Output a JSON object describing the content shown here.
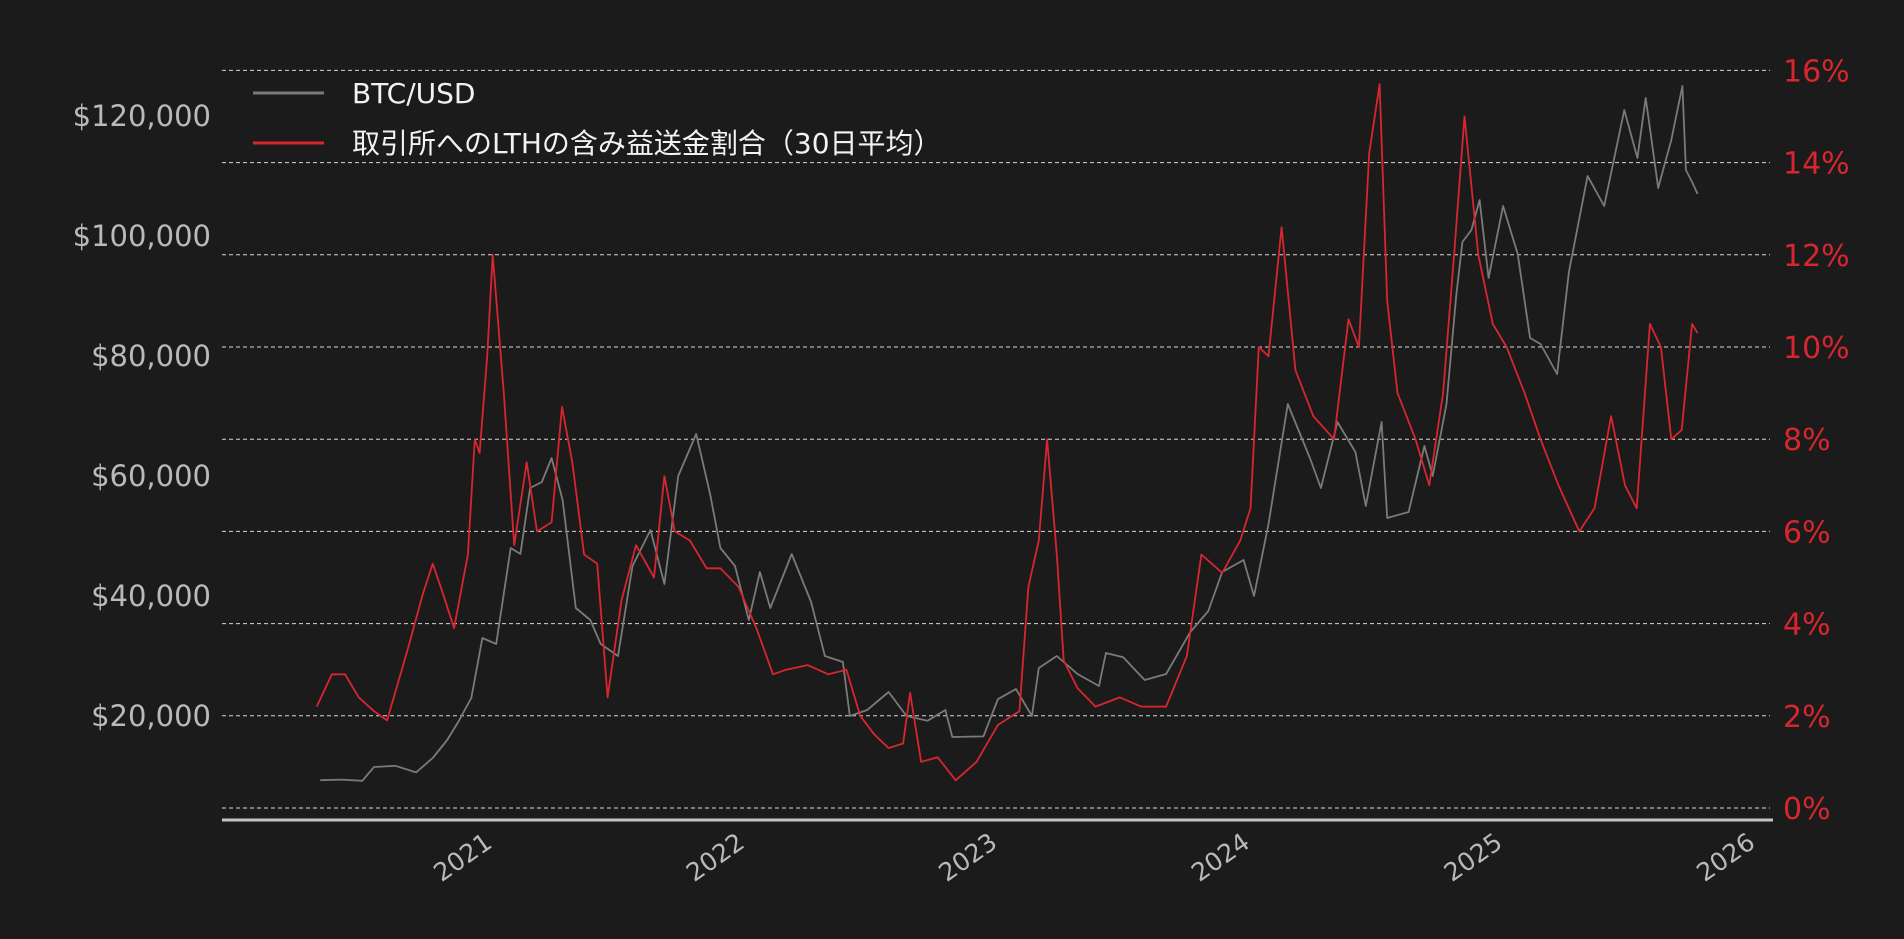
{
  "chart_data": {
    "type": "line",
    "title": "",
    "legend_placement": "top-left",
    "grid": true,
    "colors": {
      "background": "#1b1b1b",
      "btc": "#7a7a7a",
      "ratio": "#d7262f",
      "left_axis_text": "#b9b9b9",
      "right_axis_text": "#d7262f"
    },
    "x_ticks": [
      "2021",
      "2022",
      "2023",
      "2024",
      "2025",
      "2026"
    ],
    "xlim": [
      "2020-01-01",
      "2026-01-01"
    ],
    "left_axis": {
      "ticks": [
        "$20,000",
        "$40,000",
        "$60,000",
        "$80,000",
        "$100,000",
        "$120,000"
      ],
      "tick_values": [
        20000,
        40000,
        60000,
        80000,
        100000,
        120000
      ],
      "ylim": [
        0,
        128000
      ]
    },
    "right_axis": {
      "ticks": [
        "0%",
        "2%",
        "4%",
        "6%",
        "8%",
        "10%",
        "12%",
        "14%",
        "16%"
      ],
      "tick_values": [
        0,
        2,
        4,
        6,
        8,
        10,
        12,
        14,
        16
      ],
      "ylim": [
        -0.3,
        16
      ]
    },
    "series": [
      {
        "name": "BTC/USD",
        "axis": "left",
        "points": [
          [
            "2020-05-15",
            9300
          ],
          [
            "2020-06-15",
            9400
          ],
          [
            "2020-07-15",
            9200
          ],
          [
            "2020-08-01",
            11500
          ],
          [
            "2020-09-01",
            11700
          ],
          [
            "2020-10-01",
            10600
          ],
          [
            "2020-10-25",
            13000
          ],
          [
            "2020-11-15",
            16000
          ],
          [
            "2020-12-01",
            19000
          ],
          [
            "2020-12-20",
            23000
          ],
          [
            "2021-01-05",
            33000
          ],
          [
            "2021-01-25",
            32000
          ],
          [
            "2021-02-15",
            48000
          ],
          [
            "2021-03-01",
            47000
          ],
          [
            "2021-03-15",
            58000
          ],
          [
            "2021-04-01",
            59000
          ],
          [
            "2021-04-15",
            63000
          ],
          [
            "2021-05-01",
            56000
          ],
          [
            "2021-05-20",
            38000
          ],
          [
            "2021-06-10",
            36000
          ],
          [
            "2021-06-25",
            32000
          ],
          [
            "2021-07-20",
            30000
          ],
          [
            "2021-08-10",
            45000
          ],
          [
            "2021-09-05",
            51000
          ],
          [
            "2021-09-25",
            42000
          ],
          [
            "2021-10-15",
            60000
          ],
          [
            "2021-11-10",
            67000
          ],
          [
            "2021-11-30",
            57000
          ],
          [
            "2021-12-15",
            48000
          ],
          [
            "2022-01-05",
            45000
          ],
          [
            "2022-01-25",
            36000
          ],
          [
            "2022-02-10",
            44000
          ],
          [
            "2022-02-25",
            38000
          ],
          [
            "2022-03-28",
            47000
          ],
          [
            "2022-04-25",
            39000
          ],
          [
            "2022-05-15",
            30000
          ],
          [
            "2022-06-10",
            29000
          ],
          [
            "2022-06-20",
            20000
          ],
          [
            "2022-07-15",
            21000
          ],
          [
            "2022-08-15",
            24000
          ],
          [
            "2022-09-10",
            20000
          ],
          [
            "2022-10-10",
            19200
          ],
          [
            "2022-11-05",
            21000
          ],
          [
            "2022-11-15",
            16500
          ],
          [
            "2022-12-30",
            16600
          ],
          [
            "2023-01-20",
            22800
          ],
          [
            "2023-02-15",
            24500
          ],
          [
            "2023-03-10",
            20000
          ],
          [
            "2023-03-20",
            28000
          ],
          [
            "2023-04-15",
            30000
          ],
          [
            "2023-05-15",
            27000
          ],
          [
            "2023-06-15",
            25000
          ],
          [
            "2023-06-25",
            30500
          ],
          [
            "2023-07-20",
            29800
          ],
          [
            "2023-08-20",
            26000
          ],
          [
            "2023-09-20",
            27000
          ],
          [
            "2023-10-25",
            34000
          ],
          [
            "2023-11-20",
            37500
          ],
          [
            "2023-12-10",
            44000
          ],
          [
            "2024-01-10",
            46000
          ],
          [
            "2024-01-25",
            40000
          ],
          [
            "2024-02-15",
            52000
          ],
          [
            "2024-03-14",
            72000
          ],
          [
            "2024-04-15",
            63000
          ],
          [
            "2024-05-01",
            58000
          ],
          [
            "2024-05-25",
            69000
          ],
          [
            "2024-06-20",
            64000
          ],
          [
            "2024-07-05",
            55000
          ],
          [
            "2024-07-28",
            69000
          ],
          [
            "2024-08-05",
            53000
          ],
          [
            "2024-09-05",
            54000
          ],
          [
            "2024-09-28",
            65000
          ],
          [
            "2024-10-10",
            60000
          ],
          [
            "2024-10-30",
            72000
          ],
          [
            "2024-11-13",
            90000
          ],
          [
            "2024-11-22",
            99000
          ],
          [
            "2024-12-05",
            101000
          ],
          [
            "2024-12-17",
            106000
          ],
          [
            "2024-12-30",
            93000
          ],
          [
            "2025-01-20",
            105000
          ],
          [
            "2025-02-10",
            97000
          ],
          [
            "2025-02-28",
            83000
          ],
          [
            "2025-03-15",
            82000
          ],
          [
            "2025-04-08",
            77000
          ],
          [
            "2025-04-25",
            94000
          ],
          [
            "2025-05-22",
            110000
          ],
          [
            "2025-06-15",
            105000
          ],
          [
            "2025-07-14",
            121000
          ],
          [
            "2025-08-02",
            113000
          ],
          [
            "2025-08-14",
            123000
          ],
          [
            "2025-09-01",
            108000
          ],
          [
            "2025-09-20",
            116000
          ],
          [
            "2025-10-06",
            125000
          ],
          [
            "2025-10-11",
            111000
          ],
          [
            "2025-10-20",
            109000
          ],
          [
            "2025-10-28",
            107000
          ]
        ]
      },
      {
        "name": "取引所へのLTHの含み益送金割合（30日平均）",
        "axis": "right",
        "points": [
          [
            "2020-05-10",
            2.2
          ],
          [
            "2020-06-01",
            2.9
          ],
          [
            "2020-06-20",
            2.9
          ],
          [
            "2020-07-10",
            2.4
          ],
          [
            "2020-08-01",
            2.1
          ],
          [
            "2020-08-20",
            1.9
          ],
          [
            "2020-09-20",
            3.5
          ],
          [
            "2020-10-10",
            4.6
          ],
          [
            "2020-10-25",
            5.3
          ],
          [
            "2020-11-10",
            4.6
          ],
          [
            "2020-11-25",
            3.9
          ],
          [
            "2020-12-15",
            5.5
          ],
          [
            "2020-12-25",
            8.0
          ],
          [
            "2021-01-01",
            7.7
          ],
          [
            "2021-01-12",
            9.8
          ],
          [
            "2021-01-20",
            12.0
          ],
          [
            "2021-02-05",
            9.0
          ],
          [
            "2021-02-20",
            5.7
          ],
          [
            "2021-03-10",
            7.5
          ],
          [
            "2021-03-25",
            6.0
          ],
          [
            "2021-04-15",
            6.2
          ],
          [
            "2021-04-30",
            8.7
          ],
          [
            "2021-05-15",
            7.5
          ],
          [
            "2021-06-01",
            5.5
          ],
          [
            "2021-06-20",
            5.3
          ],
          [
            "2021-07-05",
            2.4
          ],
          [
            "2021-07-25",
            4.5
          ],
          [
            "2021-08-15",
            5.7
          ],
          [
            "2021-09-10",
            5.0
          ],
          [
            "2021-09-25",
            7.2
          ],
          [
            "2021-10-10",
            6.0
          ],
          [
            "2021-11-01",
            5.8
          ],
          [
            "2021-11-25",
            5.2
          ],
          [
            "2021-12-15",
            5.2
          ],
          [
            "2022-01-10",
            4.8
          ],
          [
            "2022-02-05",
            3.9
          ],
          [
            "2022-03-01",
            2.9
          ],
          [
            "2022-03-20",
            3.0
          ],
          [
            "2022-04-20",
            3.1
          ],
          [
            "2022-05-20",
            2.9
          ],
          [
            "2022-06-15",
            3.0
          ],
          [
            "2022-07-05",
            2.0
          ],
          [
            "2022-07-25",
            1.6
          ],
          [
            "2022-08-15",
            1.3
          ],
          [
            "2022-09-05",
            1.4
          ],
          [
            "2022-09-15",
            2.5
          ],
          [
            "2022-10-01",
            1.0
          ],
          [
            "2022-10-25",
            1.1
          ],
          [
            "2022-11-20",
            0.6
          ],
          [
            "2022-12-20",
            1.0
          ],
          [
            "2023-01-20",
            1.8
          ],
          [
            "2023-02-20",
            2.1
          ],
          [
            "2023-03-05",
            4.8
          ],
          [
            "2023-03-20",
            5.8
          ],
          [
            "2023-04-01",
            8.0
          ],
          [
            "2023-04-15",
            5.5
          ],
          [
            "2023-04-25",
            3.2
          ],
          [
            "2023-05-15",
            2.6
          ],
          [
            "2023-06-10",
            2.2
          ],
          [
            "2023-07-15",
            2.4
          ],
          [
            "2023-08-15",
            2.2
          ],
          [
            "2023-09-20",
            2.2
          ],
          [
            "2023-10-20",
            3.3
          ],
          [
            "2023-11-10",
            5.5
          ],
          [
            "2023-12-10",
            5.1
          ],
          [
            "2024-01-05",
            5.8
          ],
          [
            "2024-01-20",
            6.5
          ],
          [
            "2024-02-01",
            10.0
          ],
          [
            "2024-02-15",
            9.8
          ],
          [
            "2024-03-05",
            12.6
          ],
          [
            "2024-03-25",
            9.5
          ],
          [
            "2024-04-20",
            8.5
          ],
          [
            "2024-05-20",
            8.0
          ],
          [
            "2024-06-10",
            10.6
          ],
          [
            "2024-06-25",
            10.0
          ],
          [
            "2024-07-10",
            14.2
          ],
          [
            "2024-07-25",
            15.7
          ],
          [
            "2024-08-05",
            11.0
          ],
          [
            "2024-08-20",
            9.0
          ],
          [
            "2024-09-15",
            8.0
          ],
          [
            "2024-10-05",
            7.0
          ],
          [
            "2024-10-25",
            9.0
          ],
          [
            "2024-11-10",
            12.0
          ],
          [
            "2024-11-25",
            15.0
          ],
          [
            "2024-12-15",
            12.0
          ],
          [
            "2025-01-05",
            10.5
          ],
          [
            "2025-01-25",
            10.0
          ],
          [
            "2025-02-20",
            9.0
          ],
          [
            "2025-03-15",
            8.0
          ],
          [
            "2025-04-10",
            7.0
          ],
          [
            "2025-05-10",
            6.0
          ],
          [
            "2025-06-01",
            6.5
          ],
          [
            "2025-06-25",
            8.5
          ],
          [
            "2025-07-15",
            7.0
          ],
          [
            "2025-08-01",
            6.5
          ],
          [
            "2025-08-20",
            10.5
          ],
          [
            "2025-09-05",
            10.0
          ],
          [
            "2025-09-20",
            8.0
          ],
          [
            "2025-10-05",
            8.2
          ],
          [
            "2025-10-20",
            10.5
          ],
          [
            "2025-10-28",
            10.3
          ]
        ]
      }
    ]
  }
}
